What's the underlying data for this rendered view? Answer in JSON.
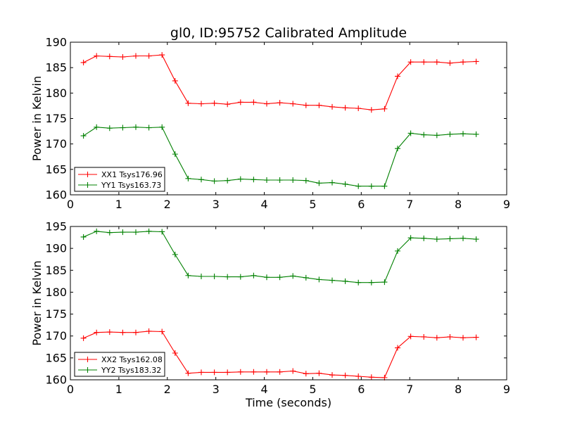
{
  "chart_data": [
    {
      "type": "line",
      "title": "gl0, ID:95752 Calibrated Amplitude",
      "xlabel": "",
      "ylabel": "Power in Kelvin",
      "xlim": [
        0,
        9
      ],
      "ylim": [
        160,
        190
      ],
      "xticks": [
        0,
        1,
        2,
        3,
        4,
        5,
        6,
        7,
        8,
        9
      ],
      "yticks": [
        160,
        165,
        170,
        175,
        180,
        185,
        190
      ],
      "grid": false,
      "legend_position": "lower-left",
      "x": [
        0.27,
        0.54,
        0.81,
        1.08,
        1.35,
        1.62,
        1.89,
        2.16,
        2.43,
        2.7,
        2.97,
        3.24,
        3.51,
        3.78,
        4.05,
        4.32,
        4.59,
        4.86,
        5.13,
        5.4,
        5.67,
        5.94,
        6.21,
        6.48,
        6.75,
        7.02,
        7.29,
        7.56,
        7.83,
        8.1,
        8.37
      ],
      "series": [
        {
          "name": "XX1 Tsys176.96",
          "color": "#ff0000",
          "values": [
            186.0,
            187.3,
            187.2,
            187.1,
            187.3,
            187.3,
            187.5,
            182.4,
            178.0,
            177.9,
            178.0,
            177.8,
            178.2,
            178.2,
            177.9,
            178.1,
            177.9,
            177.6,
            177.6,
            177.3,
            177.1,
            177.0,
            176.7,
            176.9,
            183.3,
            186.1,
            186.1,
            186.1,
            185.9,
            186.1,
            186.2
          ]
        },
        {
          "name": "YY1 Tsys163.73",
          "color": "#008000",
          "values": [
            171.6,
            173.3,
            173.1,
            173.2,
            173.3,
            173.2,
            173.3,
            168.0,
            163.2,
            163.0,
            162.7,
            162.8,
            163.1,
            163.0,
            162.9,
            162.9,
            162.9,
            162.8,
            162.3,
            162.4,
            162.1,
            161.7,
            161.7,
            161.7,
            169.1,
            172.1,
            171.8,
            171.7,
            171.9,
            172.0,
            171.9
          ]
        }
      ]
    },
    {
      "type": "line",
      "title": "",
      "xlabel": "Time (seconds)",
      "ylabel": "Power in Kelvin",
      "xlim": [
        0,
        9
      ],
      "ylim": [
        160,
        195
      ],
      "xticks": [
        0,
        1,
        2,
        3,
        4,
        5,
        6,
        7,
        8,
        9
      ],
      "yticks": [
        160,
        165,
        170,
        175,
        180,
        185,
        190,
        195
      ],
      "grid": false,
      "legend_position": "lower-left",
      "x": [
        0.27,
        0.54,
        0.81,
        1.08,
        1.35,
        1.62,
        1.89,
        2.16,
        2.43,
        2.7,
        2.97,
        3.24,
        3.51,
        3.78,
        4.05,
        4.32,
        4.59,
        4.86,
        5.13,
        5.4,
        5.67,
        5.94,
        6.21,
        6.48,
        6.75,
        7.02,
        7.29,
        7.56,
        7.83,
        8.1,
        8.37
      ],
      "series": [
        {
          "name": "XX2 Tsys162.08",
          "color": "#ff0000",
          "values": [
            169.5,
            170.8,
            170.9,
            170.8,
            170.8,
            171.1,
            171.0,
            166.1,
            161.5,
            161.7,
            161.7,
            161.7,
            161.8,
            161.8,
            161.8,
            161.8,
            162.0,
            161.4,
            161.5,
            161.1,
            161.0,
            160.8,
            160.6,
            160.5,
            167.3,
            169.9,
            169.8,
            169.6,
            169.8,
            169.6,
            169.7
          ]
        },
        {
          "name": "YY2 Tsys183.32",
          "color": "#008000",
          "values": [
            192.6,
            193.9,
            193.6,
            193.7,
            193.7,
            193.9,
            193.8,
            188.6,
            183.8,
            183.6,
            183.6,
            183.5,
            183.5,
            183.8,
            183.4,
            183.4,
            183.7,
            183.3,
            182.9,
            182.7,
            182.5,
            182.2,
            182.2,
            182.3,
            189.4,
            192.4,
            192.3,
            192.1,
            192.2,
            192.3,
            192.1
          ]
        }
      ]
    }
  ]
}
